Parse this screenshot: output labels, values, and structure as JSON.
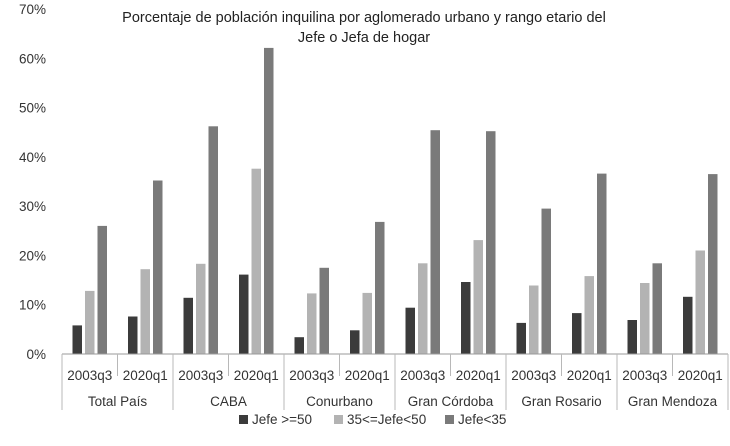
{
  "chart_data": {
    "type": "bar",
    "title_lines": [
      "Porcentaje de población inquilina por aglomerado urbano y rango etario del",
      "Jefe o Jefa de hogar"
    ],
    "groups": [
      "Total País",
      "CABA",
      "Conurbano",
      "Gran Córdoba",
      "Gran Rosario",
      "Gran Mendoza"
    ],
    "periods": [
      "2003q3",
      "2020q1"
    ],
    "categories": [
      "Total País 2003q3",
      "Total País 2020q1",
      "CABA 2003q3",
      "CABA 2020q1",
      "Conurbano 2003q3",
      "Conurbano 2020q1",
      "Gran Córdoba 2003q3",
      "Gran Córdoba 2020q1",
      "Gran Rosario 2003q3",
      "Gran Rosario 2020q1",
      "Gran Mendoza 2003q3",
      "Gran Mendoza 2020q1"
    ],
    "series": [
      {
        "name": "Jefe >=50",
        "color": "#3b3b3b",
        "values": [
          5.8,
          7.6,
          11.4,
          16.1,
          3.4,
          4.8,
          9.4,
          14.6,
          6.3,
          8.3,
          6.9,
          11.6
        ]
      },
      {
        "name": "35<=Jefe<50",
        "color": "#b3b3b3",
        "values": [
          12.8,
          17.2,
          18.3,
          37.6,
          12.3,
          12.4,
          18.4,
          23.1,
          13.9,
          15.8,
          14.4,
          21.0
        ]
      },
      {
        "name": "Jefe<35",
        "color": "#7a7a7a",
        "values": [
          26.0,
          35.2,
          46.2,
          62.1,
          17.5,
          26.8,
          45.4,
          45.2,
          29.5,
          36.6,
          18.4,
          36.5
        ]
      }
    ],
    "y_ticks": [
      "0%",
      "10%",
      "20%",
      "30%",
      "40%",
      "50%",
      "60%",
      "70%"
    ],
    "ylim": [
      0,
      70
    ],
    "grid": false,
    "legend_position": "bottom"
  }
}
